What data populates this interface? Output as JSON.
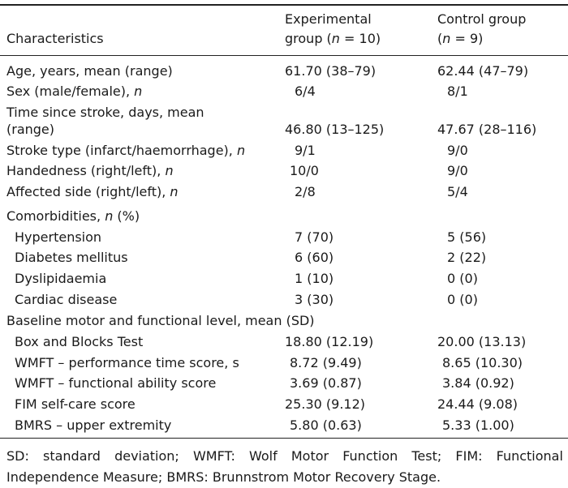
{
  "header": {
    "characteristics": "Characteristics",
    "experimental_line1": "Experimental",
    "experimental_line2_pre": "group (",
    "experimental_n": "n",
    "experimental_line2_post": " = 10)",
    "control_line1": "Control group",
    "control_line2_pre": "(",
    "control_n": "n",
    "control_line2_post": " = 9)"
  },
  "rows": [
    {
      "label": "Age, years, mean (range)",
      "exp": "61.70 (38–79)",
      "ctrl": "62.44 (47–79)"
    },
    {
      "label": "Sex (male/female), ",
      "label_italic": "n",
      "exp": "6/4",
      "ctrl": "8/1"
    },
    {
      "label": "Time since stroke, days, mean",
      "label2": "(range)",
      "exp": "46.80 (13–125)",
      "ctrl": "47.67 (28–116)"
    },
    {
      "label": "Stroke type (infarct/haemorrhage), ",
      "label_italic": "n",
      "exp": "9/1",
      "ctrl": "9/0"
    },
    {
      "label": "Handedness (right/left), ",
      "label_italic": "n",
      "exp": "10/0",
      "ctrl": "9/0"
    },
    {
      "label": "Affected side (right/left), ",
      "label_italic": "n",
      "exp": "2/8",
      "ctrl": "5/4"
    },
    {
      "label": "Comorbidities, ",
      "label_italic": "n",
      "label_post": " (%)"
    },
    {
      "label": "Hypertension",
      "exp": "7 (70)",
      "ctrl": "5 (56)"
    },
    {
      "label": "Diabetes mellitus",
      "exp": "6 (60)",
      "ctrl": "2 (22)"
    },
    {
      "label": "Dyslipidaemia",
      "exp": "1 (10)",
      "ctrl": "0 (0)"
    },
    {
      "label": "Cardiac disease",
      "exp": "3 (30)",
      "ctrl": "0 (0)"
    },
    {
      "label": "Baseline motor and functional level, mean (SD)"
    },
    {
      "label": "Box and Blocks Test",
      "exp": "18.80 (12.19)",
      "ctrl": "20.00 (13.13)"
    },
    {
      "label": "WMFT – performance time score, s",
      "exp": "8.72 (9.49)",
      "ctrl": "8.65 (10.30)"
    },
    {
      "label": "WMFT – functional ability score",
      "exp": "3.69 (0.87)",
      "ctrl": "3.84 (0.92)"
    },
    {
      "label": "FIM self-care score",
      "exp": "25.30 (9.12)",
      "ctrl": "24.44 (9.08)"
    },
    {
      "label": "BMRS – upper extremity",
      "exp": "5.80 (0.63)",
      "ctrl": "5.33 (1.00)"
    }
  ],
  "footnote": {
    "line1": [
      "SD:",
      "standard",
      "deviation;",
      "WMFT:",
      "Wolf",
      "Motor",
      "Function",
      "Test;",
      "FIM:",
      "Functional"
    ],
    "line2": "Independence Measure; BMRS: Brunnstrom Motor Recovery Stage."
  }
}
